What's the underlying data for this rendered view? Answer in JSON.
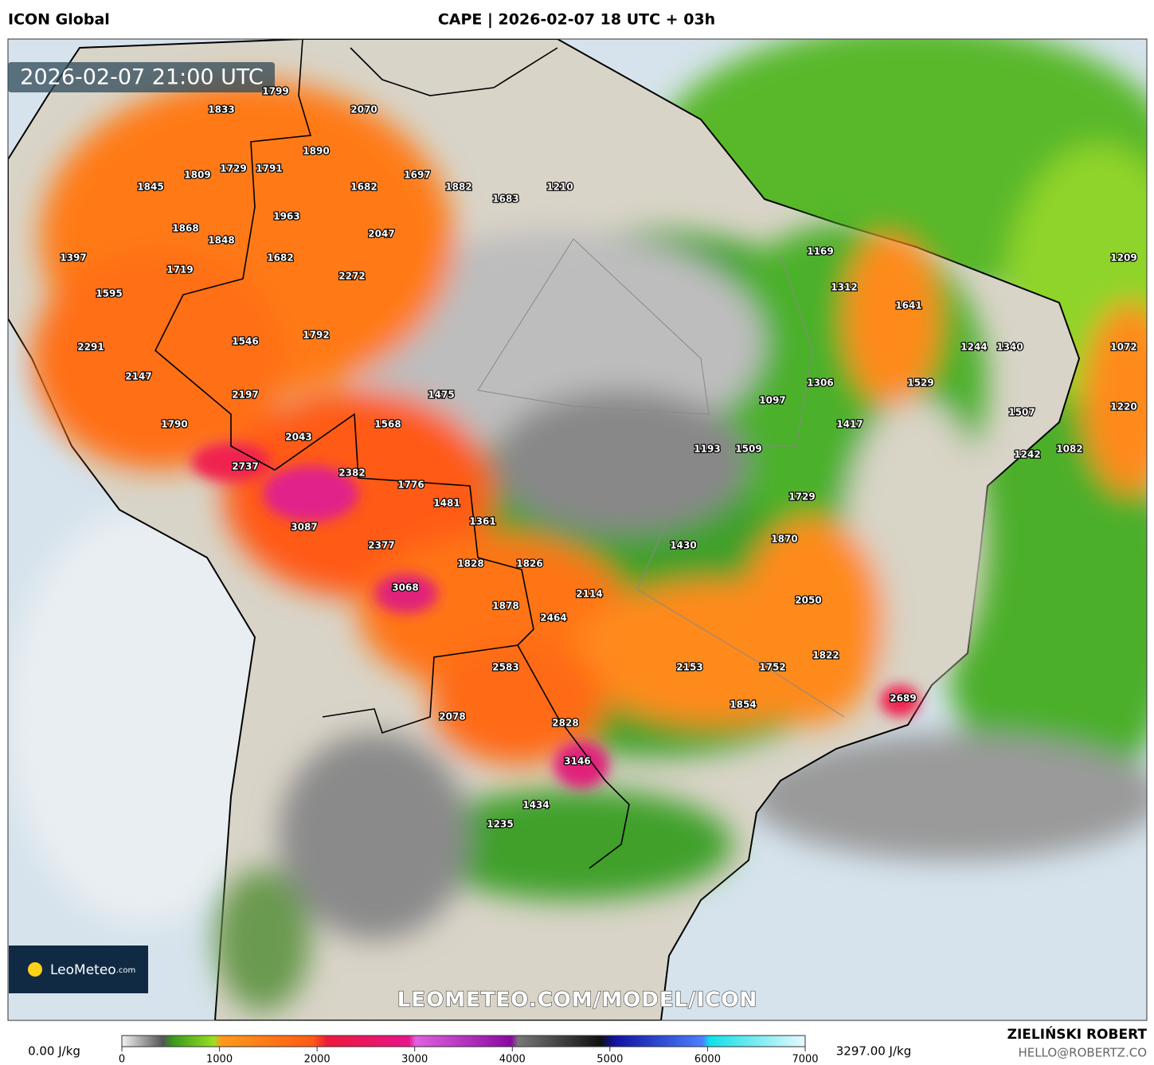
{
  "header": {
    "model": "ICON Global",
    "title": "CAPE | 2026-02-07 18 UTC + 03h"
  },
  "timestamp": "2026-02-07 21:00 UTC",
  "map": {
    "point_values": [
      1799,
      2070,
      1833,
      1890,
      1809,
      1729,
      1791,
      1697,
      1882,
      1683,
      1210,
      1845,
      1682,
      1963,
      1868,
      1848,
      2047,
      1397,
      1719,
      1682,
      2272,
      1595,
      1546,
      1792,
      2291,
      2147,
      2197,
      1790,
      2043,
      1475,
      1568,
      2737,
      2382,
      1776,
      1481,
      3087,
      1361,
      2377,
      1828,
      1826,
      3068,
      2114,
      1878,
      2464,
      2583,
      2153,
      1752,
      1822,
      2689,
      1854,
      2078,
      2828,
      3146,
      1434,
      1235,
      1169,
      1312,
      1641,
      1209,
      1244,
      1340,
      1072,
      1306,
      1529,
      1097,
      1417,
      1507,
      1220,
      1193,
      1509,
      1242,
      1082,
      1729,
      1870,
      1430,
      2050
    ]
  },
  "watermark": "LEOMETEO.COM/MODEL/ICON",
  "logo": {
    "text": "LeoMeteo",
    "suffix": ".com"
  },
  "colorbar": {
    "min_label": "0.00 J/kg",
    "max_label": "3297.00 J/kg",
    "range": [
      0,
      7000
    ],
    "ticks": [
      0,
      1000,
      2000,
      3000,
      4000,
      5000,
      6000,
      7000
    ]
  },
  "footer": {
    "author": "ZIELIŃSKI ROBERT",
    "contact": "HELLO@ROBERTZ.CO"
  }
}
